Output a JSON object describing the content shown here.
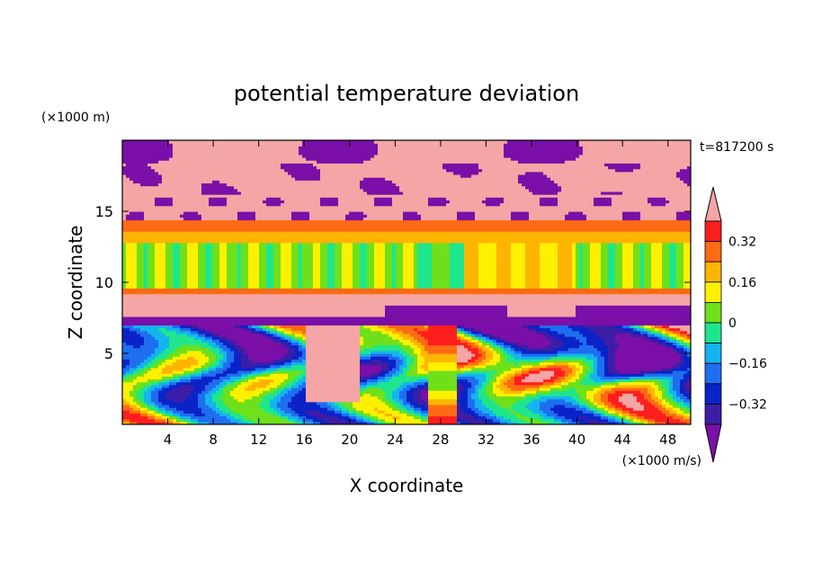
{
  "chart_data": {
    "type": "heatmap",
    "title": "potential temperature deviation",
    "xlabel": "X coordinate",
    "ylabel": "Z coordinate",
    "x_unit": "(×1000 m/s)",
    "y_unit": "(×1000 m)",
    "time_label": "t=817200 s",
    "xlim": [
      0,
      50
    ],
    "ylim": [
      0,
      20
    ],
    "x_ticks": [
      4,
      8,
      12,
      16,
      20,
      24,
      28,
      32,
      36,
      40,
      44,
      48
    ],
    "y_ticks": [
      5,
      10,
      15
    ],
    "colorbar": {
      "levels": [
        -0.4,
        -0.32,
        -0.24,
        -0.16,
        -0.08,
        0,
        0.08,
        0.16,
        0.24,
        0.32,
        0.4
      ],
      "labeled_levels": [
        0.32,
        0.16,
        0,
        -0.16,
        -0.32
      ],
      "label_texts": [
        "0.32",
        "0.16",
        "0",
        "−0.16",
        "−0.32"
      ],
      "colors": [
        "#7b0fa8",
        "#3c1ea6",
        "#0a23c8",
        "#1f6ef0",
        "#14b4f0",
        "#1ee68c",
        "#6fe01a",
        "#fff000",
        "#ffb400",
        "#ff6a14",
        "#ff1e1e",
        "#f5a5a5"
      ],
      "extend": "both"
    },
    "bands": [
      {
        "z": [
          18.5,
          20
        ],
        "value": 0.5
      },
      {
        "z": [
          16.2,
          18.5
        ],
        "value": 0.45
      },
      {
        "z": [
          14.3,
          16.2
        ],
        "value": 0.42
      },
      {
        "z": [
          13.6,
          14.3
        ],
        "value": 0.3
      },
      {
        "z": [
          12.8,
          13.6
        ],
        "value": 0.2
      },
      {
        "z": [
          9.6,
          12.8
        ],
        "value": 0.05
      },
      {
        "z": [
          9.2,
          9.6
        ],
        "value": 0.25
      },
      {
        "z": [
          7.6,
          9.2
        ],
        "value": 0.45
      },
      {
        "z": [
          7.0,
          7.6
        ],
        "value": -0.45
      }
    ],
    "description_note": ""
  }
}
